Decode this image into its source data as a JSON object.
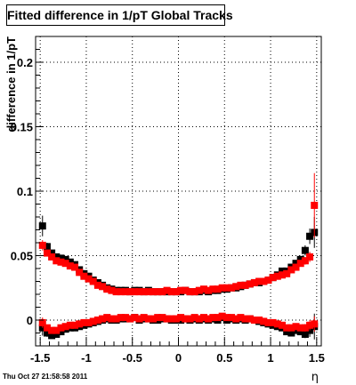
{
  "chart_data": {
    "type": "scatter",
    "title": "Fitted difference in 1/pT  Global Tracks",
    "xlabel": "η",
    "ylabel": "difference in 1/pT",
    "xlim": [
      -1.55,
      1.55
    ],
    "ylim": [
      -0.02,
      0.22
    ],
    "x_ticks": [
      "-1.5",
      "-1",
      "-0.5",
      "0",
      "0.5",
      "1",
      "1.5"
    ],
    "x_tick_values": [
      -1.5,
      -1,
      -0.5,
      0,
      0.5,
      1,
      1.5
    ],
    "y_ticks": [
      "0",
      "0.05",
      "0.1",
      "0.15",
      "0.2"
    ],
    "y_tick_values": [
      0,
      0.05,
      0.1,
      0.15,
      0.2
    ],
    "grid": true,
    "x": [
      -1.475,
      -1.425,
      -1.375,
      -1.325,
      -1.275,
      -1.225,
      -1.175,
      -1.125,
      -1.075,
      -1.025,
      -0.975,
      -0.925,
      -0.875,
      -0.825,
      -0.775,
      -0.725,
      -0.675,
      -0.625,
      -0.575,
      -0.525,
      -0.475,
      -0.425,
      -0.375,
      -0.325,
      -0.275,
      -0.225,
      -0.175,
      -0.125,
      -0.075,
      -0.025,
      0.025,
      0.075,
      0.125,
      0.175,
      0.225,
      0.275,
      0.325,
      0.375,
      0.425,
      0.475,
      0.525,
      0.575,
      0.625,
      0.675,
      0.725,
      0.775,
      0.825,
      0.875,
      0.925,
      0.975,
      1.025,
      1.075,
      1.125,
      1.175,
      1.225,
      1.275,
      1.325,
      1.375,
      1.425,
      1.475
    ],
    "series": [
      {
        "color": "#000000",
        "values": [
          0.073,
          0.057,
          0.052,
          0.049,
          0.048,
          0.047,
          0.045,
          0.043,
          0.039,
          0.036,
          0.034,
          0.031,
          0.029,
          0.027,
          0.025,
          0.024,
          0.023,
          0.023,
          0.023,
          0.022,
          0.023,
          0.023,
          0.022,
          0.023,
          0.022,
          0.022,
          0.022,
          0.022,
          0.022,
          0.022,
          0.022,
          0.023,
          0.022,
          0.022,
          0.022,
          0.023,
          0.022,
          0.023,
          0.023,
          0.024,
          0.024,
          0.025,
          0.025,
          0.026,
          0.027,
          0.028,
          0.029,
          0.029,
          0.03,
          0.031,
          0.033,
          0.035,
          0.038,
          0.038,
          0.041,
          0.044,
          0.047,
          0.054,
          0.065,
          0.068
        ],
        "y_error": [
          0.008,
          0.003,
          0.002,
          0.002,
          0.002,
          0.002,
          0.002,
          0.002,
          0.002,
          0.001,
          0.001,
          0.001,
          0.001,
          0.001,
          0.001,
          0.001,
          0.001,
          0.001,
          0.001,
          0.001,
          0.001,
          0.001,
          0.001,
          0.001,
          0.001,
          0.001,
          0.001,
          0.001,
          0.001,
          0.001,
          0.001,
          0.001,
          0.001,
          0.001,
          0.001,
          0.001,
          0.001,
          0.001,
          0.001,
          0.001,
          0.001,
          0.001,
          0.001,
          0.001,
          0.001,
          0.001,
          0.001,
          0.001,
          0.001,
          0.001,
          0.001,
          0.002,
          0.002,
          0.002,
          0.002,
          0.002,
          0.003,
          0.004,
          0.006,
          0.012
        ]
      },
      {
        "color": "#ff0000",
        "values": [
          0.058,
          0.052,
          0.049,
          0.046,
          0.045,
          0.044,
          0.042,
          0.041,
          0.037,
          0.034,
          0.032,
          0.03,
          0.027,
          0.026,
          0.024,
          0.023,
          0.022,
          0.022,
          0.022,
          0.022,
          0.022,
          0.022,
          0.022,
          0.022,
          0.022,
          0.022,
          0.022,
          0.023,
          0.022,
          0.022,
          0.023,
          0.023,
          0.022,
          0.022,
          0.023,
          0.024,
          0.023,
          0.024,
          0.024,
          0.025,
          0.025,
          0.025,
          0.026,
          0.027,
          0.027,
          0.028,
          0.029,
          0.03,
          0.03,
          0.031,
          0.033,
          0.034,
          0.035,
          0.036,
          0.039,
          0.041,
          0.044,
          0.046,
          0.049,
          0.089
        ],
        "y_error": [
          0.004,
          0.002,
          0.002,
          0.002,
          0.002,
          0.002,
          0.001,
          0.001,
          0.001,
          0.001,
          0.001,
          0.001,
          0.001,
          0.001,
          0.001,
          0.001,
          0.001,
          0.001,
          0.001,
          0.001,
          0.001,
          0.001,
          0.001,
          0.001,
          0.001,
          0.001,
          0.001,
          0.001,
          0.001,
          0.001,
          0.001,
          0.001,
          0.001,
          0.001,
          0.001,
          0.001,
          0.001,
          0.001,
          0.001,
          0.001,
          0.001,
          0.001,
          0.001,
          0.001,
          0.001,
          0.001,
          0.001,
          0.001,
          0.001,
          0.001,
          0.001,
          0.001,
          0.001,
          0.002,
          0.002,
          0.002,
          0.002,
          0.003,
          0.004,
          0.025
        ]
      },
      {
        "color": "#000000",
        "values": [
          -0.006,
          -0.01,
          -0.012,
          -0.011,
          -0.009,
          -0.007,
          -0.006,
          -0.006,
          -0.005,
          -0.004,
          -0.003,
          -0.002,
          -0.001,
          0.0,
          0.001,
          0.0,
          0.0,
          0.001,
          0.001,
          0.001,
          0.002,
          0.0,
          0.001,
          0.001,
          0.0,
          0.0,
          0.001,
          0.001,
          0.0,
          0.0,
          0.0,
          0.001,
          0.0,
          0.001,
          0.0,
          0.001,
          0.0,
          0.001,
          0.0,
          0.002,
          0.0,
          0.001,
          0.0,
          0.001,
          0.0,
          0.001,
          0.0,
          -0.001,
          -0.002,
          -0.003,
          -0.004,
          -0.005,
          -0.006,
          -0.009,
          -0.01,
          -0.008,
          -0.009,
          -0.011,
          -0.008,
          -0.005
        ],
        "y_error": [
          0.006,
          0.003,
          0.002,
          0.002,
          0.002,
          0.002,
          0.001,
          0.001,
          0.001,
          0.001,
          0.001,
          0.001,
          0.001,
          0.001,
          0.001,
          0.001,
          0.001,
          0.001,
          0.001,
          0.001,
          0.001,
          0.001,
          0.001,
          0.001,
          0.001,
          0.001,
          0.001,
          0.001,
          0.001,
          0.001,
          0.001,
          0.001,
          0.001,
          0.001,
          0.001,
          0.001,
          0.001,
          0.001,
          0.001,
          0.001,
          0.001,
          0.001,
          0.001,
          0.001,
          0.001,
          0.001,
          0.001,
          0.001,
          0.001,
          0.001,
          0.001,
          0.001,
          0.002,
          0.002,
          0.002,
          0.002,
          0.002,
          0.003,
          0.005,
          0.01
        ]
      },
      {
        "color": "#ff0000",
        "values": [
          -0.002,
          -0.006,
          -0.008,
          -0.008,
          -0.006,
          -0.005,
          -0.004,
          -0.004,
          -0.003,
          -0.002,
          -0.002,
          -0.001,
          0.0,
          0.001,
          0.002,
          0.001,
          0.001,
          0.002,
          0.002,
          0.001,
          0.002,
          0.001,
          0.002,
          0.001,
          0.001,
          0.002,
          0.002,
          0.001,
          0.001,
          0.001,
          0.002,
          0.001,
          0.001,
          0.002,
          0.001,
          0.002,
          0.001,
          0.002,
          0.002,
          0.003,
          0.002,
          0.002,
          0.001,
          0.002,
          0.001,
          0.001,
          0.0,
          0.0,
          -0.001,
          -0.002,
          -0.002,
          -0.003,
          -0.004,
          -0.006,
          -0.006,
          -0.005,
          -0.006,
          -0.006,
          -0.004,
          -0.003
        ],
        "y_error": [
          0.004,
          0.002,
          0.002,
          0.002,
          0.002,
          0.002,
          0.001,
          0.001,
          0.001,
          0.001,
          0.001,
          0.001,
          0.001,
          0.001,
          0.001,
          0.001,
          0.001,
          0.001,
          0.001,
          0.001,
          0.001,
          0.001,
          0.001,
          0.001,
          0.001,
          0.001,
          0.001,
          0.001,
          0.001,
          0.001,
          0.001,
          0.001,
          0.001,
          0.001,
          0.001,
          0.001,
          0.001,
          0.001,
          0.001,
          0.001,
          0.001,
          0.001,
          0.001,
          0.001,
          0.001,
          0.001,
          0.001,
          0.001,
          0.001,
          0.001,
          0.001,
          0.001,
          0.001,
          0.002,
          0.002,
          0.002,
          0.002,
          0.003,
          0.004,
          0.006
        ]
      }
    ]
  },
  "footer": {
    "timestamp": "Thu Oct 27 21:58:58 2011"
  }
}
